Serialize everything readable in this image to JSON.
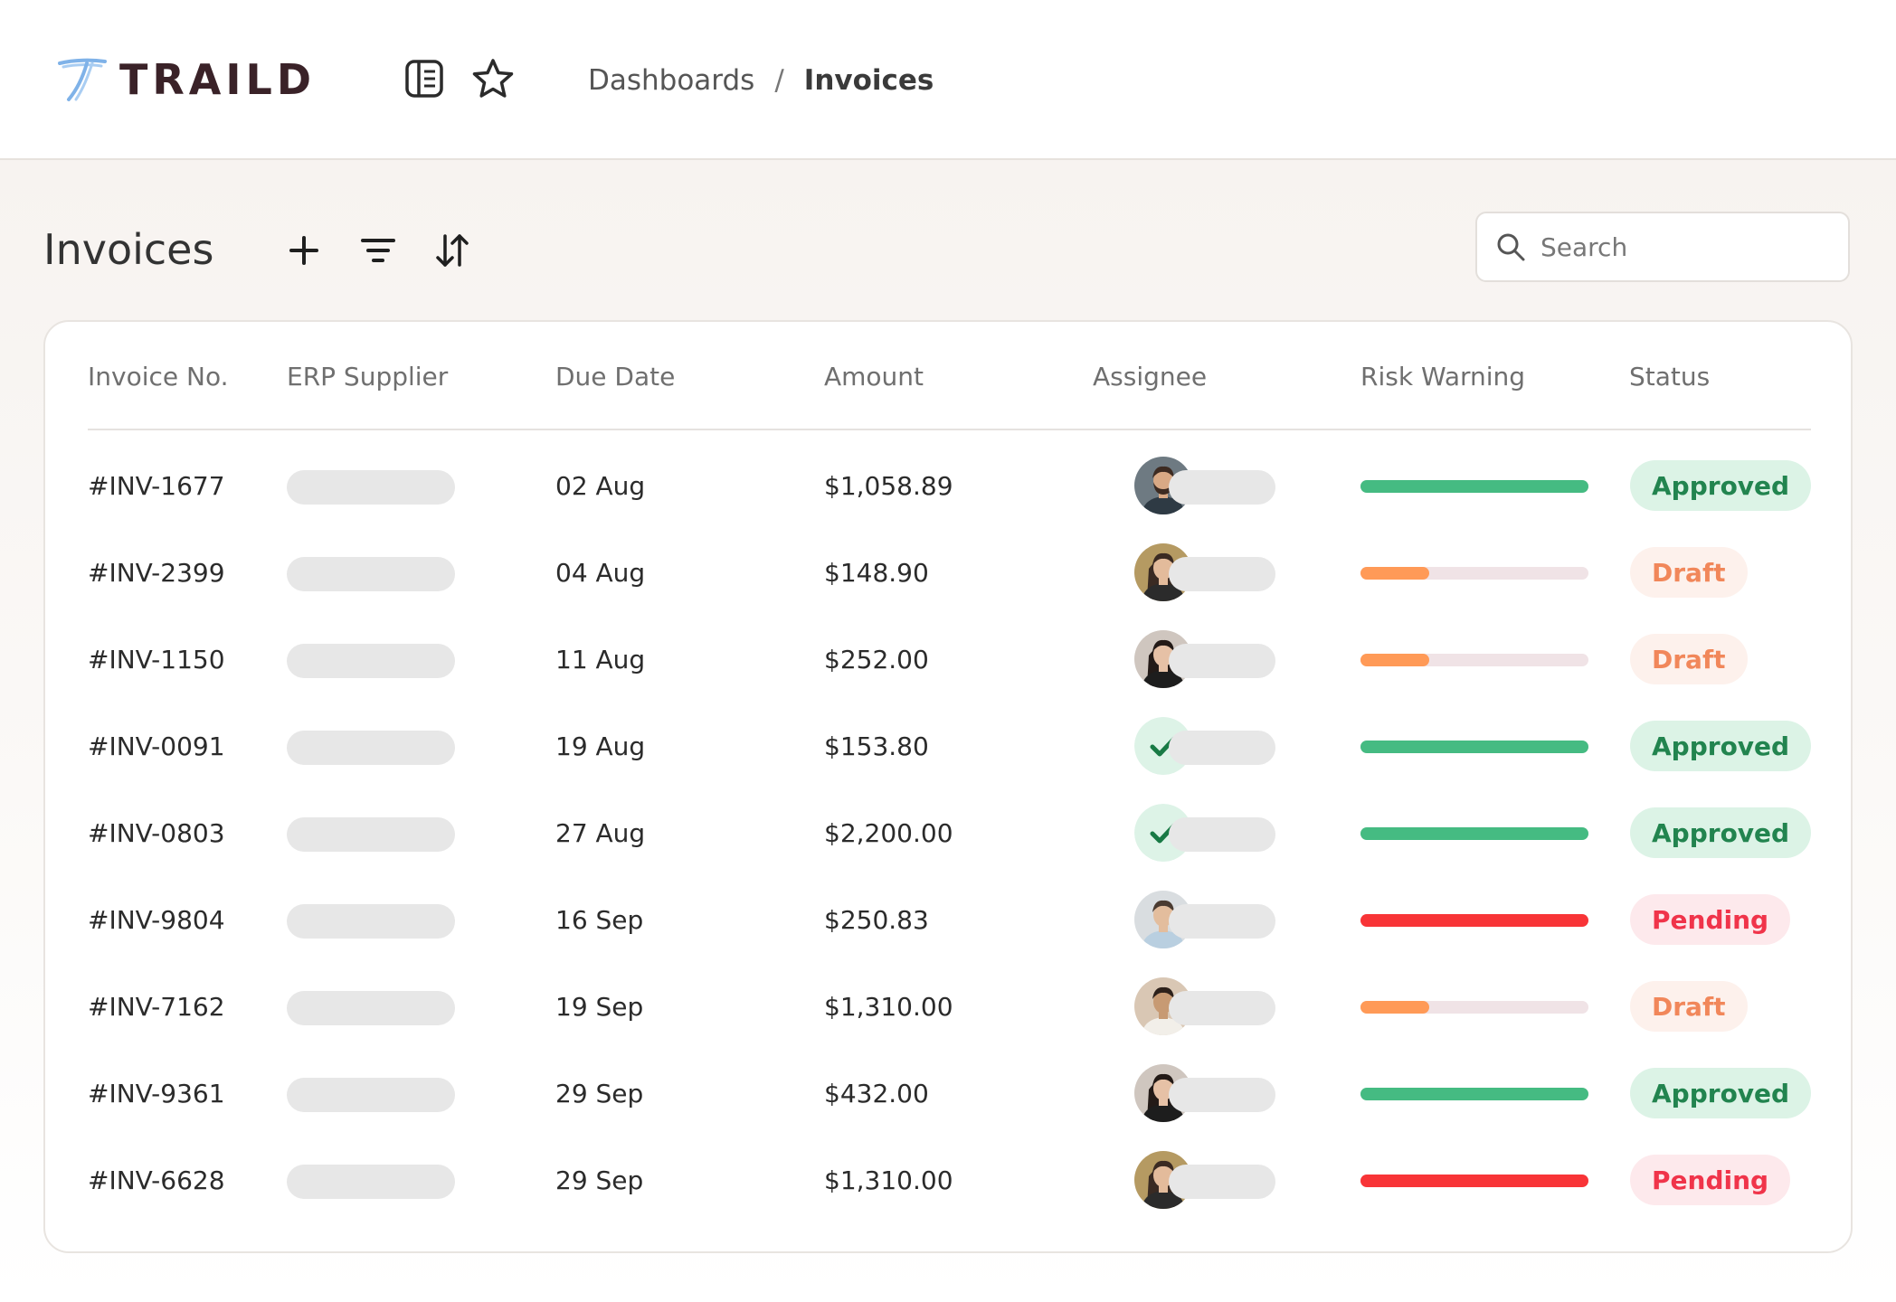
{
  "brand": {
    "name": "TRAILD"
  },
  "breadcrumb": {
    "parent": "Dashboards",
    "separator": "/",
    "current": "Invoices"
  },
  "page": {
    "title": "Invoices"
  },
  "search": {
    "placeholder": "Search"
  },
  "table": {
    "columns": [
      "Invoice No.",
      "ERP Supplier",
      "Due Date",
      "Amount",
      "Assignee",
      "Risk Warning",
      "Status"
    ],
    "rows": [
      {
        "invoice": "#INV-1677",
        "due": "02 Aug",
        "amount": "$1,058.89",
        "assignee": "man-beard",
        "risk": 1.0,
        "risk_color": "green",
        "status": "Approved",
        "status_kind": "approved"
      },
      {
        "invoice": "#INV-2399",
        "due": "04 Aug",
        "amount": "$148.90",
        "assignee": "woman-outdoor",
        "risk": 0.3,
        "risk_color": "orange",
        "status": "Draft",
        "status_kind": "draft"
      },
      {
        "invoice": "#INV-1150",
        "due": "11 Aug",
        "amount": "$252.00",
        "assignee": "woman-dark",
        "risk": 0.3,
        "risk_color": "orange",
        "status": "Draft",
        "status_kind": "draft"
      },
      {
        "invoice": "#INV-0091",
        "due": "19 Aug",
        "amount": "$153.80",
        "assignee": "check",
        "risk": 1.0,
        "risk_color": "green",
        "status": "Approved",
        "status_kind": "approved"
      },
      {
        "invoice": "#INV-0803",
        "due": "27 Aug",
        "amount": "$2,200.00",
        "assignee": "check",
        "risk": 1.0,
        "risk_color": "green",
        "status": "Approved",
        "status_kind": "approved"
      },
      {
        "invoice": "#INV-9804",
        "due": "16 Sep",
        "amount": "$250.83",
        "assignee": "man-suit",
        "risk": 1.0,
        "risk_color": "red",
        "status": "Pending",
        "status_kind": "pending"
      },
      {
        "invoice": "#INV-7162",
        "due": "19 Sep",
        "amount": "$1,310.00",
        "assignee": "man-smile",
        "risk": 0.3,
        "risk_color": "orange",
        "status": "Draft",
        "status_kind": "draft"
      },
      {
        "invoice": "#INV-9361",
        "due": "29 Sep",
        "amount": "$432.00",
        "assignee": "woman-dark",
        "risk": 1.0,
        "risk_color": "green",
        "status": "Approved",
        "status_kind": "approved"
      },
      {
        "invoice": "#INV-6628",
        "due": "29 Sep",
        "amount": "$1,310.00",
        "assignee": "woman-outdoor",
        "risk": 1.0,
        "risk_color": "red",
        "status": "Pending",
        "status_kind": "pending"
      }
    ]
  },
  "icons": {
    "logo": "traild-logo-icon",
    "sidebar_toggle": "sidebar-panel-icon",
    "favorite": "star-icon",
    "add": "plus-icon",
    "filter": "filter-icon",
    "sort": "sort-icon",
    "search": "search-icon",
    "check": "check-icon"
  },
  "colors": {
    "brand_text": "#3a2228",
    "risk_green": "#45bb82",
    "risk_orange": "#ff9a57",
    "risk_red": "#f83437",
    "approved_bg": "#dcf3e6",
    "approved_fg": "#22844f",
    "draft_bg": "#fdf1ec",
    "draft_fg": "#f1875a",
    "pending_bg": "#fde9ec",
    "pending_fg": "#f0344a"
  }
}
